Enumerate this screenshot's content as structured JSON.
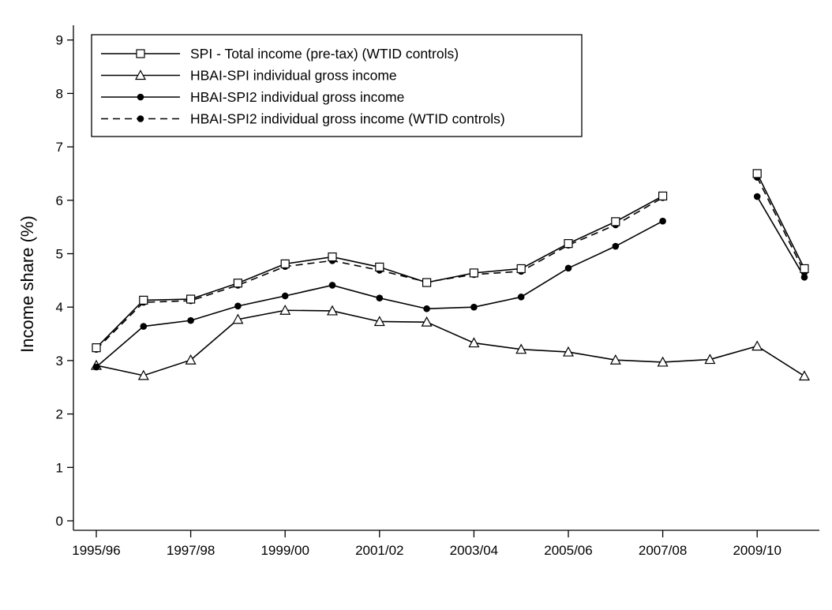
{
  "chart_data": {
    "type": "line",
    "ylabel": "Income share (%)",
    "xlabel": "",
    "ylim": [
      0,
      9
    ],
    "yticks": [
      0,
      1,
      2,
      3,
      4,
      5,
      6,
      7,
      8,
      9
    ],
    "x": [
      "1995/96",
      "1996/97",
      "1997/98",
      "1998/99",
      "1999/00",
      "2000/01",
      "2001/02",
      "2002/03",
      "2003/04",
      "2004/05",
      "2005/06",
      "2006/07",
      "2007/08",
      "2008/09",
      "2009/10",
      "2010/11"
    ],
    "xtick_labels": [
      "1995/96",
      "1997/98",
      "1999/00",
      "2001/02",
      "2003/04",
      "2005/06",
      "2007/08",
      "2009/10"
    ],
    "grid": false,
    "legend_position": "top-left",
    "series": [
      {
        "name": "SPI - Total income (pre-tax) (WTID controls)",
        "marker": "square-open",
        "dash": "solid",
        "values": [
          3.24,
          4.13,
          4.15,
          4.45,
          4.81,
          4.94,
          4.75,
          4.46,
          4.64,
          4.72,
          5.19,
          5.6,
          6.08,
          null,
          6.5,
          4.72
        ]
      },
      {
        "name": "HBAI-SPI individual gross income",
        "marker": "triangle-open",
        "dash": "solid",
        "values": [
          2.91,
          2.72,
          3.01,
          3.77,
          3.94,
          3.93,
          3.73,
          3.72,
          3.33,
          3.21,
          3.16,
          3.01,
          2.97,
          3.02,
          3.27,
          2.71
        ]
      },
      {
        "name": "HBAI-SPI2 individual gross income",
        "marker": "circle-filled",
        "dash": "solid",
        "values": [
          2.88,
          3.64,
          3.75,
          4.02,
          4.21,
          4.41,
          4.17,
          3.97,
          4.0,
          4.19,
          4.73,
          5.14,
          5.61,
          null,
          6.07,
          4.56
        ]
      },
      {
        "name": "HBAI-SPI2 individual gross income (WTID controls)",
        "marker": "circle-filled",
        "dash": "dashed",
        "values": [
          3.21,
          4.09,
          4.12,
          4.41,
          4.76,
          4.87,
          4.69,
          4.47,
          4.61,
          4.67,
          5.16,
          5.54,
          6.05,
          null,
          6.43,
          4.65
        ]
      }
    ]
  }
}
